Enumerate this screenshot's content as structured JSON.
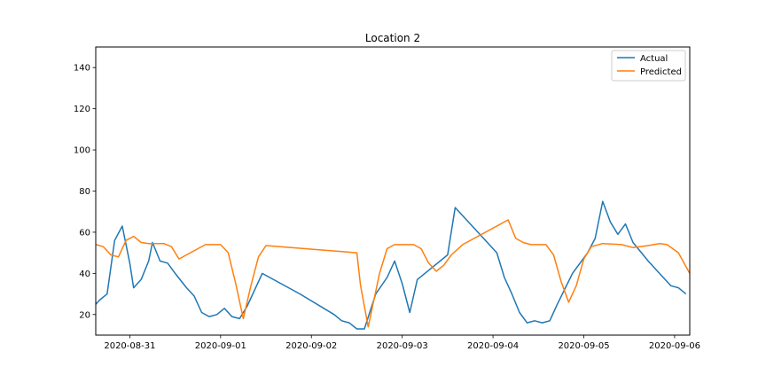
{
  "chart_data": {
    "type": "line",
    "title": "Location 2",
    "xlabel": "",
    "ylabel": "",
    "xlim": [
      "2020-08-30T15:00",
      "2020-09-06T04:00"
    ],
    "ylim": [
      10,
      150
    ],
    "x_ticks": [
      "2020-08-31",
      "2020-09-01",
      "2020-09-02",
      "2020-09-03",
      "2020-09-04",
      "2020-09-05",
      "2020-09-06"
    ],
    "y_ticks": [
      20,
      40,
      60,
      80,
      100,
      120,
      140
    ],
    "grid": false,
    "legend": "top-right",
    "series": [
      {
        "name": "Actual",
        "color": "#1f77b4",
        "points": [
          [
            "2020-08-30T15:00",
            25
          ],
          [
            "2020-08-30T16:00",
            27
          ],
          [
            "2020-08-30T18:00",
            30
          ],
          [
            "2020-08-30T20:00",
            56
          ],
          [
            "2020-08-30T22:00",
            63
          ],
          [
            "2020-08-31T00:00",
            45
          ],
          [
            "2020-08-31T01:00",
            33
          ],
          [
            "2020-08-31T03:00",
            37
          ],
          [
            "2020-08-31T05:00",
            46
          ],
          [
            "2020-08-31T06:00",
            55
          ],
          [
            "2020-08-31T08:00",
            46
          ],
          [
            "2020-08-31T10:00",
            45
          ],
          [
            "2020-08-31T12:00",
            40
          ],
          [
            "2020-08-31T15:00",
            33
          ],
          [
            "2020-08-31T17:00",
            29
          ],
          [
            "2020-08-31T19:00",
            21
          ],
          [
            "2020-08-31T21:00",
            19
          ],
          [
            "2020-08-31T23:00",
            20
          ],
          [
            "2020-09-01T01:00",
            23
          ],
          [
            "2020-09-01T03:00",
            19
          ],
          [
            "2020-09-01T05:00",
            18
          ],
          [
            "2020-09-01T07:00",
            24
          ],
          [
            "2020-09-01T11:00",
            40
          ],
          [
            "2020-09-01T21:00",
            30
          ],
          [
            "2020-09-02T06:00",
            20
          ],
          [
            "2020-09-02T08:00",
            17
          ],
          [
            "2020-09-02T10:00",
            16
          ],
          [
            "2020-09-02T12:00",
            13
          ],
          [
            "2020-09-02T14:00",
            13
          ],
          [
            "2020-09-02T17:00",
            30
          ],
          [
            "2020-09-02T20:00",
            38
          ],
          [
            "2020-09-02T22:00",
            46
          ],
          [
            "2020-09-03T00:00",
            35
          ],
          [
            "2020-09-03T02:00",
            21
          ],
          [
            "2020-09-03T04:00",
            37
          ],
          [
            "2020-09-03T08:00",
            43
          ],
          [
            "2020-09-03T12:00",
            49
          ],
          [
            "2020-09-03T14:00",
            72
          ],
          [
            "2020-09-04T01:00",
            50
          ],
          [
            "2020-09-04T03:00",
            38
          ],
          [
            "2020-09-04T05:00",
            30
          ],
          [
            "2020-09-04T07:00",
            21
          ],
          [
            "2020-09-04T09:00",
            16
          ],
          [
            "2020-09-04T11:00",
            17
          ],
          [
            "2020-09-04T13:00",
            16
          ],
          [
            "2020-09-04T15:00",
            17
          ],
          [
            "2020-09-04T17:00",
            25
          ],
          [
            "2020-09-04T21:00",
            40
          ],
          [
            "2020-09-05T01:00",
            50
          ],
          [
            "2020-09-05T03:00",
            57
          ],
          [
            "2020-09-05T05:00",
            75
          ],
          [
            "2020-09-05T07:00",
            65
          ],
          [
            "2020-09-05T09:00",
            59
          ],
          [
            "2020-09-05T11:00",
            64
          ],
          [
            "2020-09-05T13:00",
            55
          ],
          [
            "2020-09-05T17:00",
            46
          ],
          [
            "2020-09-05T21:00",
            38
          ],
          [
            "2020-09-05T23:00",
            34
          ],
          [
            "2020-09-06T01:00",
            33
          ],
          [
            "2020-09-06T03:00",
            30
          ]
        ]
      },
      {
        "name": "Predicted",
        "color": "#ff7f0e",
        "points": [
          [
            "2020-08-30T15:00",
            54
          ],
          [
            "2020-08-30T17:00",
            53
          ],
          [
            "2020-08-30T19:00",
            49
          ],
          [
            "2020-08-30T21:00",
            48
          ],
          [
            "2020-08-30T23:00",
            56
          ],
          [
            "2020-08-31T01:00",
            58
          ],
          [
            "2020-08-31T03:00",
            55
          ],
          [
            "2020-08-31T05:00",
            54.5
          ],
          [
            "2020-08-31T09:00",
            54.5
          ],
          [
            "2020-08-31T11:00",
            53
          ],
          [
            "2020-08-31T13:00",
            47
          ],
          [
            "2020-08-31T18:00",
            52
          ],
          [
            "2020-08-31T20:00",
            54
          ],
          [
            "2020-09-01T00:00",
            54
          ],
          [
            "2020-09-01T02:00",
            50
          ],
          [
            "2020-09-01T04:00",
            35
          ],
          [
            "2020-09-01T06:00",
            18
          ],
          [
            "2020-09-01T08:00",
            34
          ],
          [
            "2020-09-01T10:00",
            48
          ],
          [
            "2020-09-01T12:00",
            53.5
          ],
          [
            "2020-09-02T12:00",
            50
          ],
          [
            "2020-09-02T13:00",
            34
          ],
          [
            "2020-09-02T15:00",
            14
          ],
          [
            "2020-09-02T18:00",
            40
          ],
          [
            "2020-09-02T20:00",
            52
          ],
          [
            "2020-09-02T22:00",
            54
          ],
          [
            "2020-09-03T03:00",
            54
          ],
          [
            "2020-09-03T05:00",
            52
          ],
          [
            "2020-09-03T07:00",
            45
          ],
          [
            "2020-09-03T09:00",
            41
          ],
          [
            "2020-09-03T11:00",
            44
          ],
          [
            "2020-09-03T13:00",
            49
          ],
          [
            "2020-09-03T16:00",
            54
          ],
          [
            "2020-09-04T04:00",
            66
          ],
          [
            "2020-09-04T06:00",
            57
          ],
          [
            "2020-09-04T08:00",
            55
          ],
          [
            "2020-09-04T10:00",
            54
          ],
          [
            "2020-09-04T14:00",
            54
          ],
          [
            "2020-09-04T16:00",
            49
          ],
          [
            "2020-09-04T18:00",
            36
          ],
          [
            "2020-09-04T20:00",
            26
          ],
          [
            "2020-09-04T22:00",
            34
          ],
          [
            "2020-09-05T00:00",
            47
          ],
          [
            "2020-09-05T02:00",
            53
          ],
          [
            "2020-09-05T05:00",
            54.5
          ],
          [
            "2020-09-05T10:00",
            54
          ],
          [
            "2020-09-05T13:00",
            52.5
          ],
          [
            "2020-09-05T17:00",
            53.5
          ],
          [
            "2020-09-05T20:00",
            54.5
          ],
          [
            "2020-09-05T22:00",
            54
          ],
          [
            "2020-09-06T01:00",
            50
          ],
          [
            "2020-09-06T04:00",
            40
          ]
        ]
      }
    ]
  }
}
